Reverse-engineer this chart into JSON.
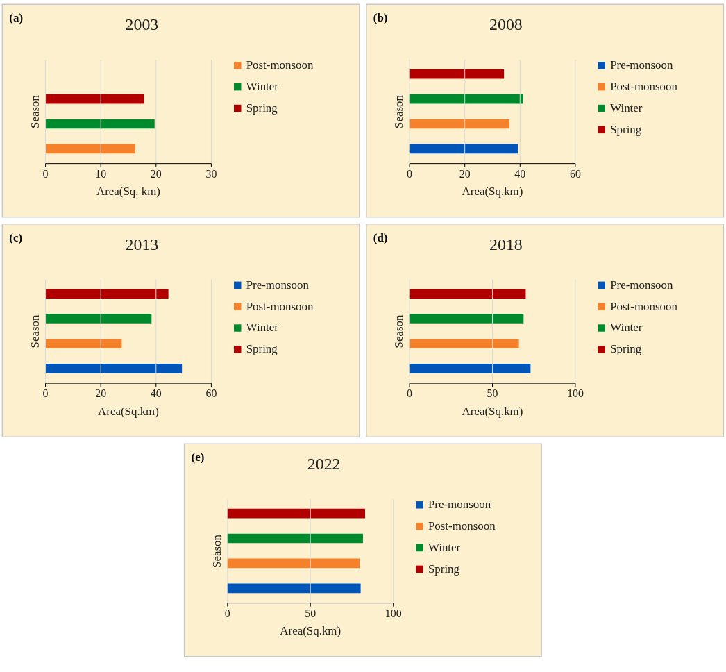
{
  "chart_data": [
    {
      "type": "bar",
      "orientation": "horizontal",
      "title": "2003",
      "annotations": [
        "(a)"
      ],
      "xlabel": "Area(Sq. km)",
      "ylabel": "Season",
      "categories": [
        null
      ],
      "xlim": [
        0,
        30
      ],
      "xticks": [
        0,
        10,
        20,
        30
      ],
      "grid": "x",
      "legend": "right",
      "tick_labels": "x",
      "series": [
        {
          "name": "Post-monsoon",
          "color": "#f5822a",
          "values": [
            16.3
          ]
        },
        {
          "name": "Winter",
          "color": "#008a2e",
          "values": [
            19.8
          ]
        },
        {
          "name": "Spring",
          "color": "#b20000",
          "values": [
            17.9
          ]
        }
      ]
    },
    {
      "type": "bar",
      "orientation": "horizontal",
      "title": "2008",
      "annotations": [
        "(b)"
      ],
      "xlabel": "Area(Sq.km)",
      "ylabel": "Season",
      "categories": [
        null
      ],
      "xlim": [
        0,
        60
      ],
      "xticks": [
        0,
        20,
        40,
        60
      ],
      "grid": "x",
      "legend": "right",
      "tick_labels": "x",
      "series": [
        {
          "name": "Pre-monsoon",
          "color": "#0055b8",
          "values": [
            39.3
          ]
        },
        {
          "name": "Post-monsoon",
          "color": "#f5822a",
          "values": [
            36.3
          ]
        },
        {
          "name": "Winter",
          "color": "#008a2e",
          "values": [
            41.2
          ]
        },
        {
          "name": "Spring",
          "color": "#b20000",
          "values": [
            34.3
          ]
        }
      ]
    },
    {
      "type": "bar",
      "orientation": "horizontal",
      "title": "2013",
      "annotations": [
        "(c)"
      ],
      "xlabel": "Area(Sq.km)",
      "ylabel": "Season",
      "categories": [
        null
      ],
      "xlim": [
        0,
        60
      ],
      "xticks": [
        0,
        20,
        40,
        60
      ],
      "grid": "x",
      "legend": "right",
      "tick_labels": "x",
      "series": [
        {
          "name": "Pre-monsoon",
          "color": "#0055b8",
          "values": [
            49.5
          ]
        },
        {
          "name": "Post-monsoon",
          "color": "#f5822a",
          "values": [
            27.7
          ]
        },
        {
          "name": "Winter",
          "color": "#008a2e",
          "values": [
            38.5
          ]
        },
        {
          "name": "Spring",
          "color": "#b20000",
          "values": [
            44.6
          ]
        }
      ]
    },
    {
      "type": "bar",
      "orientation": "horizontal",
      "title": "2018",
      "annotations": [
        "(d)"
      ],
      "xlabel": "Area(Sq.km)",
      "ylabel": "Season",
      "categories": [
        null
      ],
      "xlim": [
        0,
        100
      ],
      "xticks": [
        0,
        50,
        100
      ],
      "grid": "x",
      "legend": "right",
      "tick_labels": "x",
      "series": [
        {
          "name": "Pre-monsoon",
          "color": "#0055b8",
          "values": [
            73.2
          ]
        },
        {
          "name": "Post-monsoon",
          "color": "#f5822a",
          "values": [
            66.2
          ]
        },
        {
          "name": "Winter",
          "color": "#008a2e",
          "values": [
            69.0
          ]
        },
        {
          "name": "Spring",
          "color": "#b20000",
          "values": [
            70.3
          ]
        }
      ]
    },
    {
      "type": "bar",
      "orientation": "horizontal",
      "title": "2022",
      "annotations": [
        "(e)"
      ],
      "xlabel": "Area(Sq.km)",
      "ylabel": "Season",
      "categories": [
        null
      ],
      "xlim": [
        0,
        100
      ],
      "xticks": [
        0,
        50,
        100
      ],
      "grid": "x",
      "legend": "right",
      "tick_labels": "x",
      "series": [
        {
          "name": "Pre-monsoon",
          "color": "#0055b8",
          "values": [
            80.5
          ]
        },
        {
          "name": "Post-monsoon",
          "color": "#f5822a",
          "values": [
            79.9
          ]
        },
        {
          "name": "Winter",
          "color": "#008a2e",
          "values": [
            81.9
          ]
        },
        {
          "name": "Spring",
          "color": "#b20000",
          "values": [
            83.2
          ]
        }
      ]
    }
  ]
}
